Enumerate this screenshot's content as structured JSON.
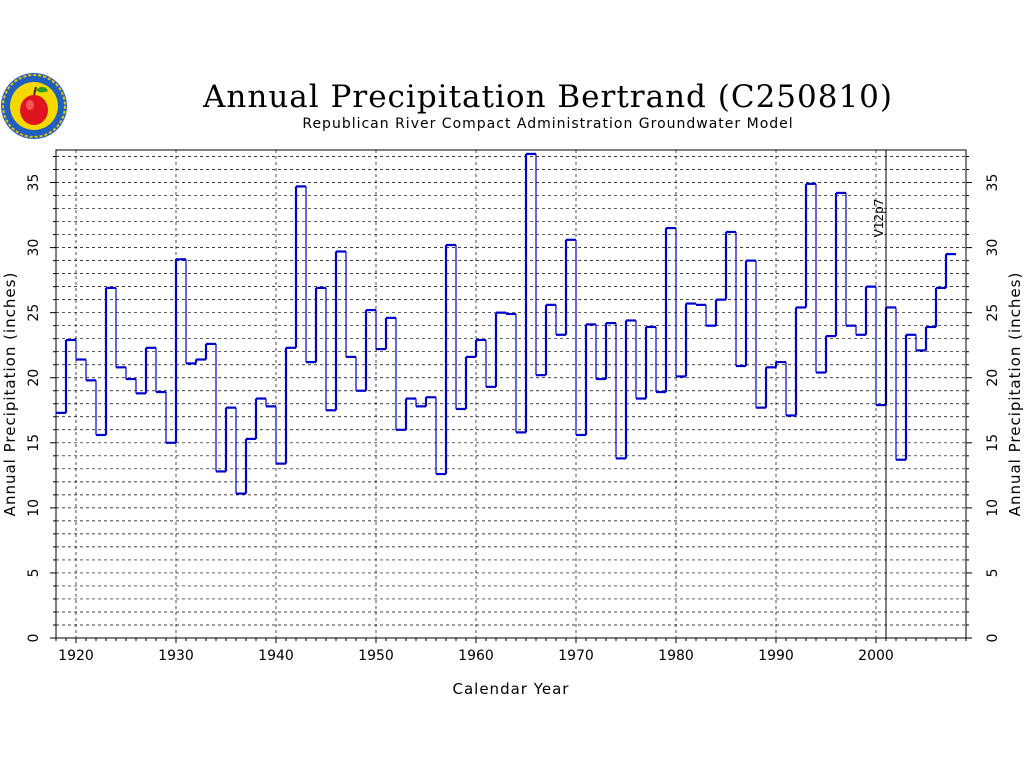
{
  "chart_data": {
    "type": "line",
    "step": true,
    "title": "Annual Precipitation Bertrand (C250810)",
    "subtitle": "Republican River Compact Administration Groundwater Model",
    "xlabel": "Calendar Year",
    "ylabel": "Annual Precipitation (inches)",
    "ylabel_right": "Annual Precipitation (inches)",
    "xlim": [
      1918,
      2009
    ],
    "ylim": [
      0,
      37.5
    ],
    "x_ticks": [
      "1920",
      "1930",
      "1940",
      "1950",
      "1960",
      "1970",
      "1980",
      "1990",
      "2000"
    ],
    "y_ticks": [
      "0",
      "5",
      "10",
      "15",
      "20",
      "25",
      "30",
      "35"
    ],
    "grid": true,
    "annotation": {
      "text": "V12p7",
      "x": 2001
    },
    "line_color": "#0000cc",
    "x": [
      1918,
      1919,
      1920,
      1921,
      1922,
      1923,
      1924,
      1925,
      1926,
      1927,
      1928,
      1929,
      1930,
      1931,
      1932,
      1933,
      1934,
      1935,
      1936,
      1937,
      1938,
      1939,
      1940,
      1941,
      1942,
      1943,
      1944,
      1945,
      1946,
      1947,
      1948,
      1949,
      1950,
      1951,
      1952,
      1953,
      1954,
      1955,
      1956,
      1957,
      1958,
      1959,
      1960,
      1961,
      1962,
      1963,
      1964,
      1965,
      1966,
      1967,
      1968,
      1969,
      1970,
      1971,
      1972,
      1973,
      1974,
      1975,
      1976,
      1977,
      1978,
      1979,
      1980,
      1981,
      1982,
      1983,
      1984,
      1985,
      1986,
      1987,
      1988,
      1989,
      1990,
      1991,
      1992,
      1993,
      1994,
      1995,
      1996,
      1997,
      1998,
      1999,
      2000,
      2001,
      2002,
      2003,
      2004,
      2005,
      2006,
      2007
    ],
    "values": [
      17.3,
      22.9,
      21.4,
      19.8,
      15.6,
      26.9,
      20.8,
      19.9,
      18.8,
      22.3,
      18.9,
      15.0,
      29.1,
      21.1,
      21.4,
      22.6,
      12.8,
      17.7,
      11.1,
      15.3,
      18.4,
      17.8,
      13.4,
      22.3,
      34.7,
      21.2,
      26.9,
      17.5,
      29.7,
      21.6,
      19.0,
      25.2,
      22.2,
      24.6,
      16.0,
      18.4,
      17.8,
      18.5,
      12.6,
      30.2,
      17.6,
      21.6,
      22.9,
      19.3,
      25.0,
      24.9,
      15.8,
      37.2,
      20.2,
      25.6,
      23.3,
      30.6,
      15.6,
      24.1,
      19.9,
      24.2,
      13.8,
      24.4,
      18.4,
      23.9,
      18.9,
      31.5,
      20.1,
      25.7,
      25.6,
      24.0,
      26.0,
      31.2,
      20.9,
      29.0,
      17.7,
      20.8,
      21.2,
      17.1,
      25.4,
      34.9,
      20.4,
      23.2,
      34.2,
      24.0,
      23.3,
      27.0,
      17.9,
      25.4,
      13.7,
      23.3,
      22.1,
      23.9,
      26.9,
      29.5
    ]
  }
}
